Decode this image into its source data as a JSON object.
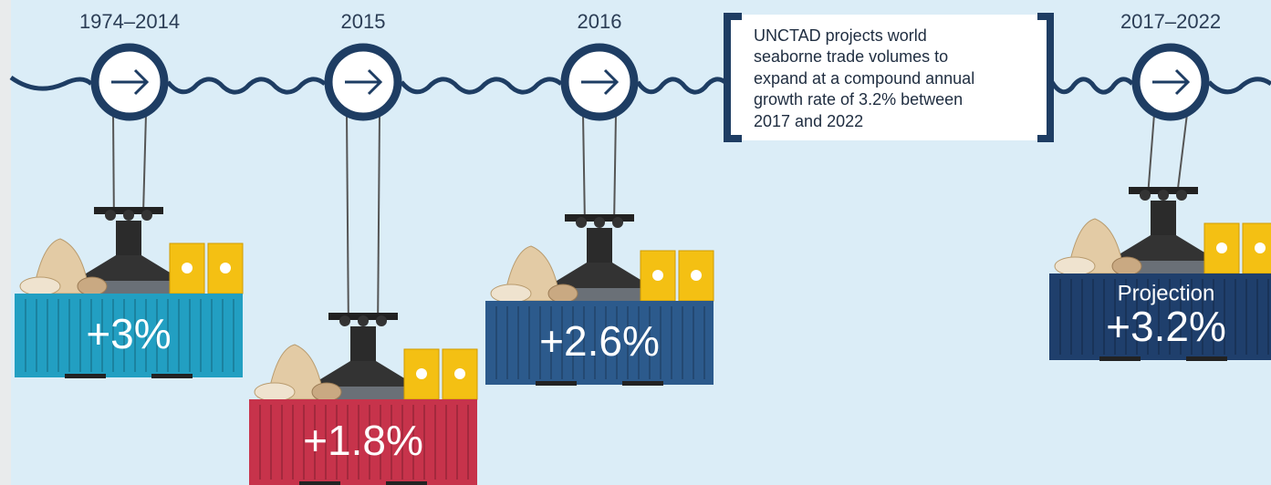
{
  "periods": [
    {
      "label": "1974–2014",
      "change": "+3%"
    },
    {
      "label": "2015",
      "change": "+1.8%"
    },
    {
      "label": "2016",
      "change": "+2.6%"
    },
    {
      "label": "2017–2022",
      "change": "+3.2%",
      "tag": "Projection"
    }
  ],
  "note": {
    "lines": [
      "UNCTAD projects world",
      "seaborne trade volumes to",
      "expand at a compound annual",
      "growth rate of 3.2% between",
      "2017 and 2022"
    ]
  }
}
